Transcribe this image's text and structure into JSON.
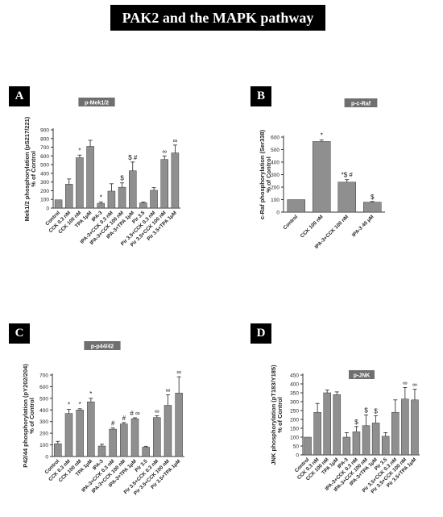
{
  "page": {
    "title": "PAK2 and the MAPK pathway"
  },
  "colors": {
    "bar": "#8f8f8f",
    "bar_edge": "#3a3a3a",
    "tag_bg": "#6f6f6f",
    "title_bg": "#000000"
  },
  "chart_data": [
    {
      "panel": "A",
      "type": "bar",
      "tag": "p-Mek1/2",
      "ylabel": "Mek1/2 phosphorylation (pS217/221)\n% of Control",
      "ylim": [
        0,
        900
      ],
      "yticks": [
        0,
        100,
        200,
        300,
        400,
        500,
        600,
        700,
        800,
        900
      ],
      "categories": [
        "Control",
        "CCK 0.3 nM",
        "CCK 100 nM",
        "TPA 1μM",
        "IPA-3",
        "IPA-3+CCK 0.3 nM",
        "IPA-3+CCK 100 nM",
        "IPA-3+TPA 1μM",
        "Pir 3.5",
        "Pir 3.5+CCK 0.3 nM",
        "Pir 3.5+CCK 100 nM",
        "Pir 3.5+TPA 1μM"
      ],
      "values": [
        95,
        275,
        580,
        710,
        55,
        195,
        240,
        430,
        60,
        205,
        560,
        635
      ],
      "errors": [
        0,
        60,
        30,
        70,
        15,
        85,
        50,
        100,
        10,
        30,
        40,
        90
      ],
      "annotations": [
        "",
        "",
        "*",
        "",
        "*",
        "",
        "$",
        "$ #",
        "",
        "",
        "∞",
        "∞"
      ]
    },
    {
      "panel": "B",
      "type": "bar",
      "tag": "p-c-Raf",
      "ylabel": "c-Raf phosphorylation (Ser338)\n% of Control",
      "ylim": [
        0,
        600
      ],
      "yticks": [
        0,
        100,
        200,
        300,
        400,
        500,
        600
      ],
      "categories": [
        "Control",
        "CCK 100 nM",
        "IPA-3+CCK 100 nM",
        "IPA-3 40 μM"
      ],
      "values": [
        100,
        565,
        240,
        80
      ],
      "errors": [
        0,
        12,
        20,
        5
      ],
      "annotations": [
        "",
        "*",
        "*$ #",
        "$"
      ]
    },
    {
      "panel": "C",
      "type": "bar",
      "tag": "p-p44/42",
      "ylabel": "P42/44 phosphorylation (pY202/204)\n% of Control",
      "ylim": [
        0,
        700
      ],
      "yticks": [
        0,
        100,
        200,
        300,
        400,
        500,
        600,
        700
      ],
      "categories": [
        "Control",
        "CCK 0.3 nM",
        "CCK 100 nM",
        "TPA 1μM",
        "IPA-3",
        "IPA-3+CCK 0.3 nM",
        "IPA-3+CCK 100 nM",
        "IPA-3+TPA 1μM",
        "Pir 3.5",
        "Pir 3.5+CCK 0.3 nM",
        "Pir 3.5+CCK 100 nM",
        "Pir 3.5+TPA 1μM"
      ],
      "values": [
        110,
        370,
        400,
        470,
        90,
        235,
        280,
        325,
        80,
        335,
        440,
        545
      ],
      "errors": [
        20,
        35,
        10,
        30,
        15,
        10,
        12,
        8,
        8,
        15,
        90,
        140
      ],
      "annotations": [
        "",
        "*",
        "*",
        "*",
        "",
        "#",
        "#",
        "# ∞",
        "",
        "∞",
        "∞",
        "∞"
      ]
    },
    {
      "panel": "D",
      "type": "bar",
      "tag": "p-JNK",
      "ylabel": "JNK phosphorylation (pT183/Y185)\n% of Control",
      "ylim": [
        0,
        450
      ],
      "yticks": [
        0,
        50,
        100,
        150,
        200,
        250,
        300,
        350,
        400,
        450
      ],
      "categories": [
        "Control",
        "CCK 0.3 nM",
        "CCK 100 nM",
        "TPA 1μM",
        "IPA-3",
        "IPA-3+CCK 0.3 nM",
        "IPA-3+CCK 100 nM",
        "IPA-3+TPA 1μM",
        "Pir 3.5",
        "Pir 3.5+CCK 0.3 nM",
        "Pir 3.5+CCK 100 nM",
        "Pir 3.5+TPA 1μM"
      ],
      "values": [
        100,
        240,
        350,
        340,
        100,
        130,
        165,
        180,
        105,
        240,
        315,
        310
      ],
      "errors": [
        0,
        50,
        15,
        15,
        25,
        30,
        60,
        40,
        20,
        70,
        65,
        60
      ],
      "annotations": [
        "",
        "",
        "",
        "",
        "",
        "$",
        "$",
        "$",
        "",
        "",
        "∞",
        "∞"
      ]
    }
  ]
}
